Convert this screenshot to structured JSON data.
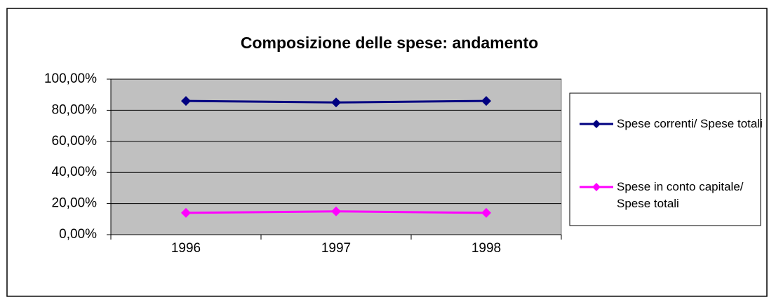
{
  "chart_data": {
    "type": "line",
    "title": "Composizione delle spese: andamento",
    "categories": [
      "1996",
      "1997",
      "1998"
    ],
    "series": [
      {
        "name": "Spese correnti/ Spese totali",
        "color": "#000080",
        "values": [
          86,
          85,
          86
        ]
      },
      {
        "name": "Spese in conto capitale/ Spese totali",
        "color": "#ff00ff",
        "values": [
          14,
          15,
          14
        ]
      }
    ],
    "ylim": [
      0,
      100
    ],
    "yticks": [
      {
        "value": 0,
        "label": "0,00%"
      },
      {
        "value": 20,
        "label": "20,00%"
      },
      {
        "value": 40,
        "label": "40,00%"
      },
      {
        "value": 60,
        "label": "60,00%"
      },
      {
        "value": 80,
        "label": "80,00%"
      },
      {
        "value": 100,
        "label": "100,00%"
      }
    ],
    "grid": true,
    "legend": "right"
  }
}
